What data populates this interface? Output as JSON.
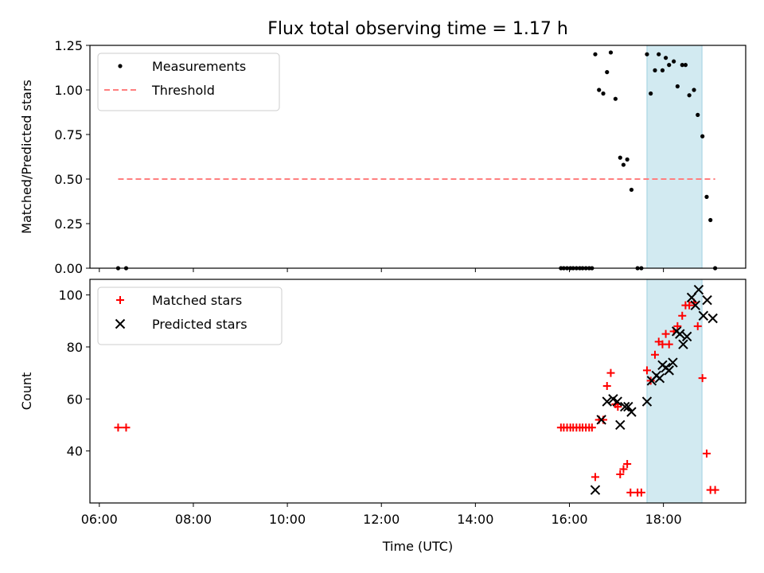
{
  "chart_data": [
    {
      "type": "scatter",
      "title": "Flux total observing time = 1.17 h",
      "ylabel": "Matched/Predicted stars",
      "xlabel": "",
      "x_unit": "hours UTC",
      "xlim": [
        5.8,
        19.75
      ],
      "ylim": [
        0,
        1.25
      ],
      "yticks": [
        {
          "v": 0,
          "label": "0.00"
        },
        {
          "v": 0.25,
          "label": "0.25"
        },
        {
          "v": 0.5,
          "label": "0.50"
        },
        {
          "v": 0.75,
          "label": "0.75"
        },
        {
          "v": 1.0,
          "label": "1.00"
        },
        {
          "v": 1.25,
          "label": "1.25"
        }
      ],
      "xticks": [
        6,
        8,
        10,
        12,
        14,
        16,
        18
      ],
      "shaded_region": {
        "x": [
          17.65,
          18.82
        ],
        "color": "#add8e6"
      },
      "legend": {
        "placement": "top-left"
      },
      "threshold": {
        "name": "Threshold",
        "y": 0.5,
        "x": [
          6.4,
          19.1
        ],
        "color": "#ff7f7f",
        "style": "dashed"
      },
      "series": [
        {
          "name": "Measurements",
          "marker": "dot",
          "color": "#000000",
          "points": [
            [
              6.4,
              0
            ],
            [
              6.57,
              0
            ],
            [
              15.82,
              0
            ],
            [
              15.88,
              0
            ],
            [
              15.95,
              0
            ],
            [
              16.02,
              0
            ],
            [
              16.08,
              0
            ],
            [
              16.15,
              0
            ],
            [
              16.22,
              0
            ],
            [
              16.28,
              0
            ],
            [
              16.35,
              0
            ],
            [
              16.42,
              0
            ],
            [
              16.48,
              0
            ],
            [
              16.55,
              1.2
            ],
            [
              16.63,
              1.0
            ],
            [
              16.72,
              0.98
            ],
            [
              16.8,
              1.1
            ],
            [
              16.88,
              1.21
            ],
            [
              16.98,
              0.95
            ],
            [
              17.08,
              0.62
            ],
            [
              17.15,
              0.58
            ],
            [
              17.23,
              0.61
            ],
            [
              17.32,
              0.44
            ],
            [
              17.45,
              0
            ],
            [
              17.53,
              0
            ],
            [
              17.65,
              1.2
            ],
            [
              17.73,
              0.98
            ],
            [
              17.82,
              1.11
            ],
            [
              17.9,
              1.2
            ],
            [
              17.98,
              1.11
            ],
            [
              18.05,
              1.18
            ],
            [
              18.12,
              1.14
            ],
            [
              18.22,
              1.16
            ],
            [
              18.3,
              1.02
            ],
            [
              18.4,
              1.14
            ],
            [
              18.47,
              1.14
            ],
            [
              18.55,
              0.97
            ],
            [
              18.65,
              1.0
            ],
            [
              18.73,
              0.86
            ],
            [
              18.83,
              0.74
            ],
            [
              18.92,
              0.4
            ],
            [
              19.0,
              0.27
            ],
            [
              19.1,
              0
            ]
          ]
        }
      ]
    },
    {
      "type": "scatter",
      "title": "",
      "xlabel": "Time (UTC)",
      "ylabel": "Count",
      "x_unit": "hours UTC",
      "xlim": [
        5.8,
        19.75
      ],
      "ylim": [
        20,
        106
      ],
      "yticks": [
        {
          "v": 40,
          "label": "40"
        },
        {
          "v": 60,
          "label": "60"
        },
        {
          "v": 80,
          "label": "80"
        },
        {
          "v": 100,
          "label": "100"
        }
      ],
      "xticks": [
        {
          "v": 6,
          "label": "06:00"
        },
        {
          "v": 8,
          "label": "08:00"
        },
        {
          "v": 10,
          "label": "10:00"
        },
        {
          "v": 12,
          "label": "12:00"
        },
        {
          "v": 14,
          "label": "14:00"
        },
        {
          "v": 16,
          "label": "16:00"
        },
        {
          "v": 18,
          "label": "18:00"
        }
      ],
      "shaded_region": {
        "x": [
          17.65,
          18.82
        ],
        "color": "#add8e6"
      },
      "legend": {
        "placement": "top-left"
      },
      "series": [
        {
          "name": "Matched stars",
          "marker": "plus",
          "color": "#ff0000",
          "points": [
            [
              6.4,
              49
            ],
            [
              6.57,
              49
            ],
            [
              15.82,
              49
            ],
            [
              15.88,
              49
            ],
            [
              15.95,
              49
            ],
            [
              16.02,
              49
            ],
            [
              16.08,
              49
            ],
            [
              16.15,
              49
            ],
            [
              16.22,
              49
            ],
            [
              16.28,
              49
            ],
            [
              16.35,
              49
            ],
            [
              16.42,
              49
            ],
            [
              16.48,
              49
            ],
            [
              16.55,
              30
            ],
            [
              16.63,
              52
            ],
            [
              16.72,
              52
            ],
            [
              16.8,
              65
            ],
            [
              16.88,
              70
            ],
            [
              16.98,
              58
            ],
            [
              17.03,
              57
            ],
            [
              17.08,
              31
            ],
            [
              17.15,
              33
            ],
            [
              17.23,
              35
            ],
            [
              17.3,
              24
            ],
            [
              17.45,
              24
            ],
            [
              17.53,
              24
            ],
            [
              17.65,
              71
            ],
            [
              17.73,
              67
            ],
            [
              17.82,
              77
            ],
            [
              17.9,
              82
            ],
            [
              17.98,
              81
            ],
            [
              18.05,
              85
            ],
            [
              18.12,
              81
            ],
            [
              18.22,
              86
            ],
            [
              18.3,
              88
            ],
            [
              18.4,
              92
            ],
            [
              18.47,
              96
            ],
            [
              18.55,
              96
            ],
            [
              18.65,
              97
            ],
            [
              18.73,
              88
            ],
            [
              18.83,
              68
            ],
            [
              18.92,
              39
            ],
            [
              19.0,
              25
            ],
            [
              19.1,
              25
            ]
          ]
        },
        {
          "name": "Predicted stars",
          "marker": "x",
          "color": "#000000",
          "points": [
            [
              16.55,
              25
            ],
            [
              16.68,
              52
            ],
            [
              16.8,
              59
            ],
            [
              16.93,
              60
            ],
            [
              17.02,
              59
            ],
            [
              17.08,
              50
            ],
            [
              17.18,
              57
            ],
            [
              17.25,
              57
            ],
            [
              17.32,
              55
            ],
            [
              17.65,
              59
            ],
            [
              17.75,
              67
            ],
            [
              17.85,
              69
            ],
            [
              17.92,
              68
            ],
            [
              17.98,
              73
            ],
            [
              18.05,
              72
            ],
            [
              18.12,
              71
            ],
            [
              18.2,
              74
            ],
            [
              18.28,
              86
            ],
            [
              18.35,
              85
            ],
            [
              18.42,
              81
            ],
            [
              18.5,
              84
            ],
            [
              18.6,
              99
            ],
            [
              18.68,
              96
            ],
            [
              18.75,
              102
            ],
            [
              18.85,
              92
            ],
            [
              18.93,
              98
            ],
            [
              19.05,
              91
            ]
          ]
        }
      ]
    }
  ]
}
